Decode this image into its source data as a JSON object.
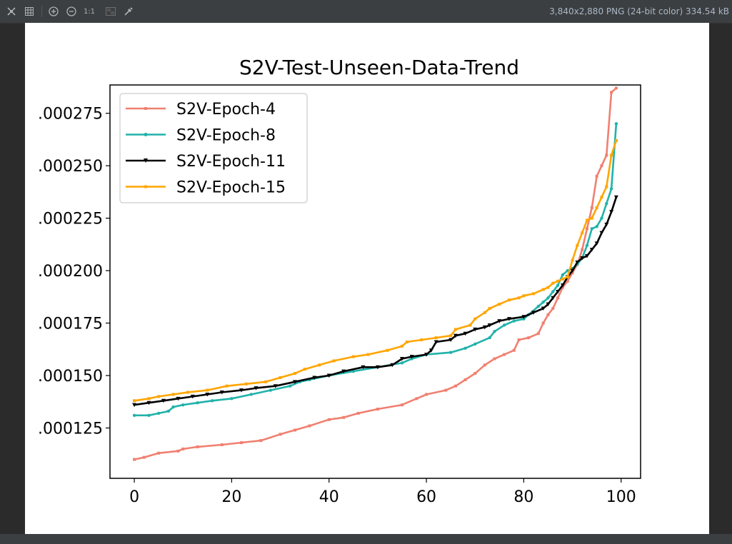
{
  "viewer": {
    "file_info": "3,840x2,880 PNG (24-bit color) 334.54 kB",
    "zoom_actual_label": "1:1",
    "toolbar_icons": [
      "fit-to-window-icon",
      "grid-icon",
      "zoom-in-icon",
      "zoom-out-icon",
      "actual-size-icon",
      "chessboard-background-icon",
      "color-picker-icon"
    ]
  },
  "chart_data": {
    "type": "line",
    "title": "S2V-Test-Unseen-Data-Trend",
    "xlabel": "",
    "ylabel": "",
    "xlim": [
      -5,
      104
    ],
    "ylim": [
      0.000101,
      0.0002885
    ],
    "x_ticks": [
      0,
      20,
      40,
      60,
      80,
      100
    ],
    "x_tick_labels": [
      "0",
      "20",
      "40",
      "60",
      "80",
      "100"
    ],
    "y_ticks": [
      0.000125,
      0.00015,
      0.000175,
      0.0002,
      0.000225,
      0.00025,
      0.000275
    ],
    "y_tick_labels": [
      ".000125",
      ".000150",
      ".000175",
      ".000200",
      ".000225",
      ".000250",
      ".000275"
    ],
    "legend_position": "top-left",
    "grid": false,
    "series": [
      {
        "name": "S2V-Epoch-4",
        "color": "#f08070",
        "marker": "square",
        "x": [
          0,
          2,
          5,
          9,
          10,
          13,
          18,
          22,
          26,
          30,
          33,
          36,
          40,
          43,
          46,
          50,
          55,
          58,
          60,
          64,
          66,
          68,
          70,
          72,
          74,
          76,
          78,
          79,
          81,
          83,
          84,
          85,
          86,
          87,
          88,
          89,
          90,
          91,
          92,
          93,
          94,
          95,
          96,
          97,
          98,
          99
        ],
        "y": [
          0.00011,
          0.000111,
          0.000113,
          0.000114,
          0.000115,
          0.000116,
          0.000117,
          0.000118,
          0.000119,
          0.000122,
          0.000124,
          0.000126,
          0.000129,
          0.00013,
          0.000132,
          0.000134,
          0.000136,
          0.000139,
          0.000141,
          0.000143,
          0.000145,
          0.000148,
          0.000151,
          0.000155,
          0.000158,
          0.00016,
          0.000162,
          0.000167,
          0.000168,
          0.00017,
          0.000175,
          0.000179,
          0.000182,
          0.000187,
          0.000192,
          0.000195,
          0.000199,
          0.000203,
          0.00021,
          0.00022,
          0.00023,
          0.000245,
          0.00025,
          0.000255,
          0.000285,
          0.000287
        ]
      },
      {
        "name": "S2V-Epoch-8",
        "color": "#20b2aa",
        "marker": "circle",
        "x": [
          0,
          3,
          5,
          7,
          8,
          10,
          13,
          16,
          20,
          24,
          28,
          32,
          34,
          36,
          40,
          45,
          50,
          55,
          57,
          60,
          65,
          68,
          70,
          73,
          74,
          76,
          78,
          80,
          81,
          83,
          84,
          85,
          86,
          87,
          88,
          89,
          90,
          91,
          92,
          93,
          94,
          95,
          96,
          97,
          98,
          99
        ],
        "y": [
          0.000131,
          0.000131,
          0.000132,
          0.000133,
          0.000135,
          0.000136,
          0.000137,
          0.000138,
          0.000139,
          0.000141,
          0.000143,
          0.000145,
          0.000147,
          0.000148,
          0.00015,
          0.000152,
          0.000154,
          0.000156,
          0.000158,
          0.00016,
          0.000161,
          0.000163,
          0.000165,
          0.000168,
          0.000171,
          0.000174,
          0.000176,
          0.000177,
          0.000179,
          0.000183,
          0.000185,
          0.000187,
          0.00019,
          0.000193,
          0.000198,
          0.0002,
          0.000201,
          0.000203,
          0.000206,
          0.000212,
          0.00022,
          0.000221,
          0.000225,
          0.000232,
          0.000239,
          0.00027
        ]
      },
      {
        "name": "S2V-Epoch-11",
        "color": "#000000",
        "marker": "triangle-down",
        "x": [
          0,
          3,
          6,
          9,
          12,
          15,
          18,
          22,
          25,
          29,
          33,
          37,
          40,
          43,
          47,
          50,
          53,
          55,
          57,
          60,
          61,
          62,
          65,
          66,
          68,
          70,
          72,
          73,
          75,
          77,
          80,
          82,
          84,
          85,
          86,
          87,
          88,
          89,
          90,
          91,
          92,
          93,
          94,
          95,
          96,
          97,
          98,
          99
        ],
        "y": [
          0.000136,
          0.000137,
          0.000138,
          0.000139,
          0.00014,
          0.000141,
          0.000142,
          0.000143,
          0.000144,
          0.000145,
          0.000147,
          0.000149,
          0.00015,
          0.000152,
          0.000154,
          0.000154,
          0.000155,
          0.000158,
          0.000159,
          0.00016,
          0.000162,
          0.000166,
          0.000167,
          0.000169,
          0.00017,
          0.000172,
          0.000173,
          0.000174,
          0.000176,
          0.000177,
          0.000178,
          0.00018,
          0.000182,
          0.000184,
          0.000187,
          0.00019,
          0.000193,
          0.000197,
          0.0002,
          0.000204,
          0.000206,
          0.000207,
          0.00021,
          0.000213,
          0.000218,
          0.000222,
          0.000228,
          0.000235
        ]
      },
      {
        "name": "S2V-Epoch-15",
        "color": "#ffa500",
        "marker": "square",
        "x": [
          0,
          3,
          5,
          8,
          11,
          15,
          19,
          23,
          27,
          30,
          33,
          35,
          38,
          41,
          45,
          48,
          52,
          55,
          56,
          59,
          62,
          65,
          66,
          69,
          70,
          72,
          73,
          75,
          77,
          79,
          80,
          82,
          84,
          85,
          86,
          87,
          88,
          89,
          90,
          91,
          92,
          93,
          94,
          95,
          96,
          97,
          98,
          99
        ],
        "y": [
          0.000138,
          0.000139,
          0.00014,
          0.000141,
          0.000142,
          0.000143,
          0.000145,
          0.000146,
          0.000147,
          0.000149,
          0.000151,
          0.000153,
          0.000155,
          0.000157,
          0.000159,
          0.00016,
          0.000162,
          0.000164,
          0.000166,
          0.000167,
          0.000168,
          0.000169,
          0.000172,
          0.000174,
          0.000177,
          0.00018,
          0.000182,
          0.000184,
          0.000186,
          0.000187,
          0.000188,
          0.000189,
          0.000191,
          0.000192,
          0.000194,
          0.000195,
          0.000196,
          0.000197,
          0.000205,
          0.000212,
          0.000218,
          0.000224,
          0.000225,
          0.00023,
          0.000235,
          0.00024,
          0.000255,
          0.000262
        ]
      }
    ]
  }
}
